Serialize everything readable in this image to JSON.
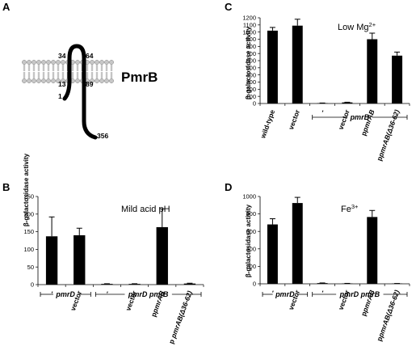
{
  "panel_a": {
    "letter": "A",
    "protein": "PmrB",
    "residues": [
      "34",
      "64",
      "13",
      "89",
      "1",
      "356"
    ]
  },
  "chart_data": [
    {
      "panel": "B",
      "type": "bar",
      "condition": "Mild acid pH",
      "ylabel": "β-galactosidase activity",
      "ylim": [
        0,
        250
      ],
      "yticks": [
        0,
        50,
        100,
        150,
        200,
        250
      ],
      "categories": [
        "-",
        "vector",
        "-",
        "vector",
        "pmrAB",
        "pmrAB(Δ36-62)"
      ],
      "category_prefixes": [
        "",
        "",
        "",
        "",
        "p",
        "p "
      ],
      "values": [
        137,
        140,
        2,
        2,
        163,
        3
      ],
      "errors": [
        55,
        20,
        0.5,
        0.5,
        52,
        1
      ],
      "groups": [
        {
          "label": "pmrD",
          "span": [
            0,
            1
          ]
        },
        {
          "label": "pmrD pmrB",
          "span": [
            2,
            5
          ]
        }
      ]
    },
    {
      "panel": "C",
      "type": "bar",
      "condition": "Low Mg",
      "condition_sup": "2+",
      "ylabel": "β-galactosidase activity",
      "ylim": [
        0,
        1200
      ],
      "yticks": [
        0,
        100,
        200,
        300,
        400,
        500,
        600,
        700,
        800,
        900,
        1000,
        1100,
        1200
      ],
      "categories": [
        "wild-type",
        "vector",
        "-",
        "vector",
        "pmrAB",
        "pmrAB(Δ36-62)"
      ],
      "category_prefixes": [
        "",
        "",
        "",
        "",
        "p",
        "p"
      ],
      "values": [
        1020,
        1090,
        5,
        15,
        900,
        670
      ],
      "errors": [
        45,
        90,
        2,
        3,
        85,
        50
      ],
      "groups": [
        {
          "label": "pmrB",
          "span": [
            2,
            5
          ]
        }
      ]
    },
    {
      "panel": "D",
      "type": "bar",
      "condition": "Fe",
      "condition_sup": "3+",
      "ylabel": "β-galactosidase activity",
      "ylim": [
        0,
        1000
      ],
      "yticks": [
        0,
        200,
        400,
        600,
        800,
        1000
      ],
      "categories": [
        "-",
        "vector",
        "-",
        "vector",
        "pmrAB",
        "pmrAB(Δ36-62)"
      ],
      "category_prefixes": [
        "",
        "",
        "",
        "",
        "p",
        "p"
      ],
      "values": [
        680,
        925,
        8,
        4,
        765,
        3
      ],
      "errors": [
        65,
        65,
        2,
        1,
        75,
        1
      ],
      "groups": [
        {
          "label": "pmrD",
          "span": [
            0,
            1
          ]
        },
        {
          "label": "pmrD pmrB",
          "span": [
            2,
            5
          ]
        }
      ]
    }
  ]
}
